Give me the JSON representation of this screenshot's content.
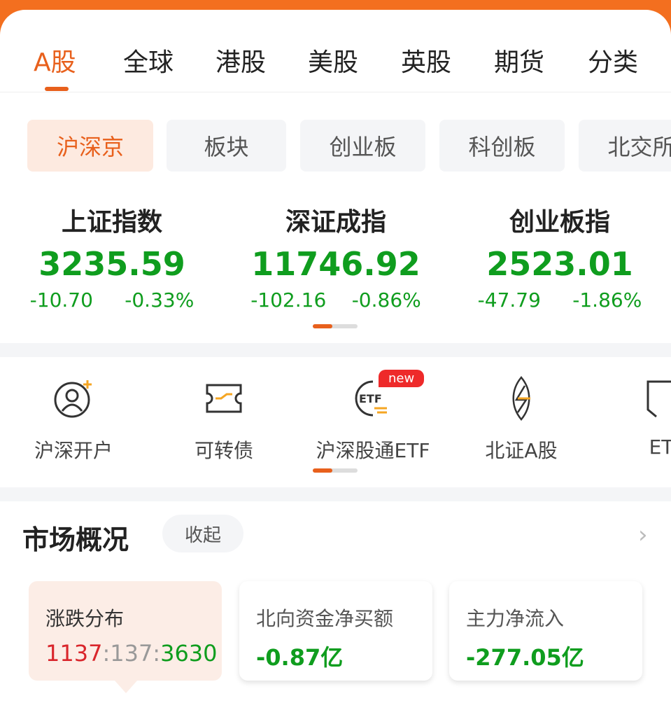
{
  "tabs": [
    "A股",
    "全球",
    "港股",
    "美股",
    "英股",
    "期货",
    "分类"
  ],
  "chips": [
    "沪深京",
    "板块",
    "创业板",
    "科创板",
    "北交所"
  ],
  "indices": [
    {
      "name": "上证指数",
      "value": "3235.59",
      "change": "-10.70",
      "pct": "-0.33%"
    },
    {
      "name": "深证成指",
      "value": "11746.92",
      "change": "-102.16",
      "pct": "-0.86%"
    },
    {
      "name": "创业板指",
      "value": "2523.01",
      "change": "-47.79",
      "pct": "-1.86%"
    }
  ],
  "entries": [
    {
      "label": "沪深开户",
      "icon": "user-add-icon"
    },
    {
      "label": "可转债",
      "icon": "ticket-icon"
    },
    {
      "label": "沪深股通ETF",
      "icon": "etf-exchange-icon",
      "badge": "new"
    },
    {
      "label": "北证A股",
      "icon": "lightning-icon"
    },
    {
      "label": "ET",
      "icon": "etf-icon"
    }
  ],
  "market": {
    "title": "市场概况",
    "collapse": "收起",
    "cards": [
      {
        "title": "涨跌分布",
        "up": "1137",
        "sep1": ":",
        "flat": "137",
        "sep2": ":",
        "down": "3630"
      },
      {
        "title": "北向资金净买额",
        "value": "-0.87亿"
      },
      {
        "title": "主力净流入",
        "value": "-277.05亿"
      }
    ]
  },
  "colors": {
    "accent": "#e8601c",
    "down": "#0f9d1e",
    "up": "#d9262c"
  }
}
